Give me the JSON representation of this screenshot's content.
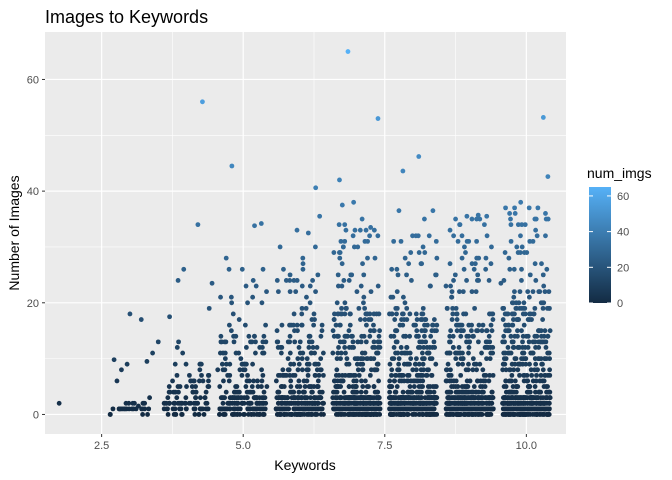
{
  "chart_data": {
    "type": "scatter",
    "title": "Images to Keywords",
    "xlabel": "Keywords",
    "ylabel": "Number of Images",
    "xlim": [
      1.5,
      10.7
    ],
    "ylim": [
      -3.5,
      68.5
    ],
    "x_ticks": [
      2.5,
      5.0,
      7.5,
      10.0
    ],
    "x_tick_labels": [
      "2.5",
      "5.0",
      "7.5",
      "10.0"
    ],
    "y_ticks": [
      0,
      20,
      40,
      60
    ],
    "y_tick_labels": [
      "0",
      "20",
      "40",
      "60"
    ],
    "grid": true,
    "panel_background": "#ebebeb",
    "grid_color": "#ffffff",
    "legend": {
      "title": "num_imgs",
      "placement": "right",
      "range": [
        0,
        65
      ],
      "ticks": [
        0,
        20,
        40,
        60
      ],
      "tick_labels": [
        "0",
        "20",
        "40",
        "60"
      ],
      "low_color": "#132b43",
      "high_color": "#56b1f7"
    },
    "color_mapping": "num_imgs",
    "points": [
      {
        "x": 1.75,
        "y": 2
      },
      {
        "x": 2.65,
        "y": 0
      },
      {
        "x": 2.7,
        "y": 1
      },
      {
        "x": 2.72,
        "y": 9.8
      },
      {
        "x": 2.85,
        "y": 8
      },
      {
        "x": 2.9,
        "y": 1
      },
      {
        "x": 2.95,
        "y": 9
      },
      {
        "x": 3.0,
        "y": 18
      },
      {
        "x": 3.05,
        "y": 2
      },
      {
        "x": 3.15,
        "y": 1.5
      },
      {
        "x": 3.2,
        "y": 17
      },
      {
        "x": 3.3,
        "y": 9.5
      },
      {
        "x": 3.4,
        "y": 11
      },
      {
        "x": 3.5,
        "y": 13
      },
      {
        "x": 3.7,
        "y": 17.5
      },
      {
        "x": 3.65,
        "y": 1
      },
      {
        "x": 3.85,
        "y": 24
      },
      {
        "x": 3.95,
        "y": 26
      },
      {
        "x": 4.05,
        "y": 7
      },
      {
        "x": 4.2,
        "y": 34
      },
      {
        "x": 4.28,
        "y": 56
      },
      {
        "x": 4.4,
        "y": 19
      },
      {
        "x": 4.45,
        "y": 23.5
      },
      {
        "x": 4.55,
        "y": 8
      },
      {
        "x": 4.6,
        "y": 21
      },
      {
        "x": 4.7,
        "y": 28
      },
      {
        "x": 4.75,
        "y": 26
      },
      {
        "x": 4.8,
        "y": 44.5
      },
      {
        "x": 5.05,
        "y": 23
      },
      {
        "x": 5.2,
        "y": 33.8
      },
      {
        "x": 5.32,
        "y": 34.2
      },
      {
        "x": 5.95,
        "y": 33
      },
      {
        "x": 6.15,
        "y": 32.5
      },
      {
        "x": 6.28,
        "y": 40.6
      },
      {
        "x": 6.35,
        "y": 35.5
      },
      {
        "x": 6.7,
        "y": 42
      },
      {
        "x": 6.75,
        "y": 37.5
      },
      {
        "x": 6.85,
        "y": 65
      },
      {
        "x": 6.95,
        "y": 38
      },
      {
        "x": 7.1,
        "y": 35
      },
      {
        "x": 7.25,
        "y": 33.5
      },
      {
        "x": 7.38,
        "y": 53
      },
      {
        "x": 7.75,
        "y": 36.5
      },
      {
        "x": 7.82,
        "y": 43.6
      },
      {
        "x": 8.1,
        "y": 46.2
      },
      {
        "x": 8.2,
        "y": 35
      },
      {
        "x": 8.35,
        "y": 36.5
      },
      {
        "x": 8.75,
        "y": 35
      },
      {
        "x": 8.95,
        "y": 35.5
      },
      {
        "x": 9.15,
        "y": 35.7
      },
      {
        "x": 9.3,
        "y": 35.5
      },
      {
        "x": 9.55,
        "y": 23.5
      },
      {
        "x": 9.9,
        "y": 38
      },
      {
        "x": 10.05,
        "y": 37
      },
      {
        "x": 10.15,
        "y": 35
      },
      {
        "x": 10.3,
        "y": 53.2
      },
      {
        "x": 10.38,
        "y": 42.6
      },
      {
        "x": 10.35,
        "y": 35
      }
    ],
    "clusters": [
      {
        "x_center": 3.0,
        "x_spread": 0.35,
        "count": 26,
        "y_max": 6,
        "heavy_max": 1.5
      },
      {
        "x_center": 4.0,
        "x_spread": 0.4,
        "count": 100,
        "y_max": 14,
        "heavy_max": 2.5
      },
      {
        "x_center": 5.0,
        "x_spread": 0.42,
        "count": 230,
        "y_max": 24,
        "heavy_max": 3
      },
      {
        "x_center": 6.0,
        "x_spread": 0.42,
        "count": 360,
        "y_max": 27,
        "heavy_max": 3
      },
      {
        "x_center": 7.0,
        "x_spread": 0.42,
        "count": 520,
        "y_max": 31,
        "heavy_max": 3
      },
      {
        "x_center": 8.0,
        "x_spread": 0.42,
        "count": 560,
        "y_max": 32,
        "heavy_max": 3
      },
      {
        "x_center": 9.0,
        "x_spread": 0.42,
        "count": 560,
        "y_max": 32,
        "heavy_max": 3
      },
      {
        "x_center": 10.0,
        "x_spread": 0.42,
        "count": 620,
        "y_max": 34,
        "heavy_max": 3
      }
    ]
  }
}
